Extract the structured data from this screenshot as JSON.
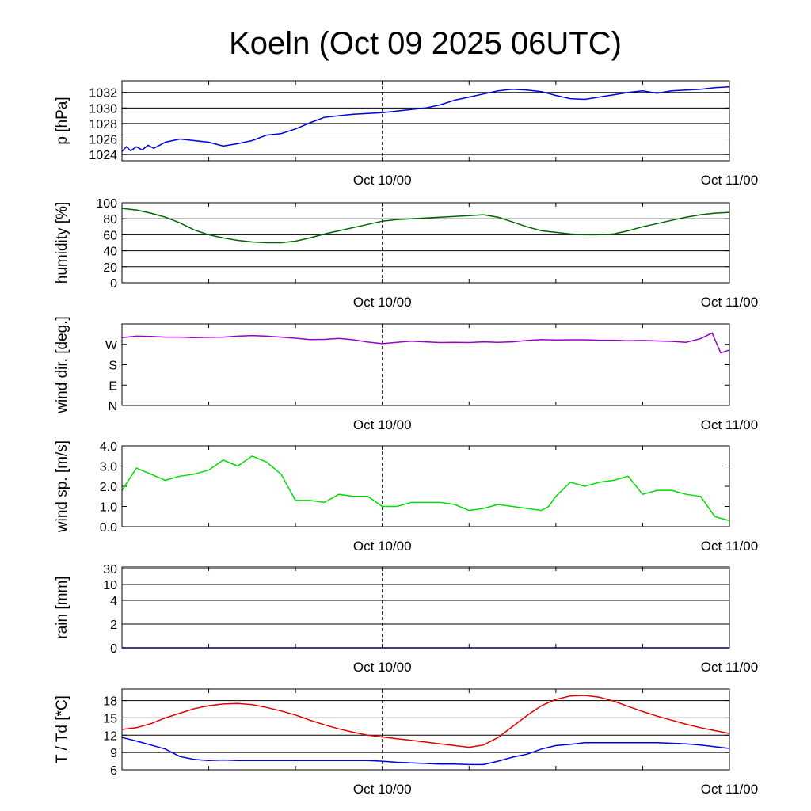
{
  "title": "Koeln (Oct 09 2025 06UTC)",
  "colors": {
    "grid": "#000000",
    "frame": "#000000"
  },
  "chart_data": [
    {
      "type": "line",
      "ylabel": "p [hPa]",
      "yticks": [
        {
          "v": 1024,
          "label": "1024"
        },
        {
          "v": 1026,
          "label": "1026"
        },
        {
          "v": 1028,
          "label": "1028"
        },
        {
          "v": 1030,
          "label": "1030"
        },
        {
          "v": 1032,
          "label": "1032"
        }
      ],
      "ylim": [
        1023.2,
        1033.5
      ],
      "grid": true,
      "xticks": [
        {
          "t": 24,
          "label": "Oct 10/00"
        },
        {
          "t": 48,
          "label": "Oct 11/00"
        }
      ],
      "series": [
        {
          "color": "#0000dd",
          "x": [
            6,
            6.3,
            6.6,
            7,
            7.4,
            7.8,
            8.2,
            9,
            10,
            11,
            12,
            13,
            14,
            15,
            16,
            17,
            18,
            19,
            20,
            21,
            22,
            23,
            24,
            25,
            26,
            27,
            28,
            29,
            30,
            31,
            32,
            33,
            34,
            35,
            36,
            37,
            38,
            39,
            40,
            41,
            42,
            43,
            44,
            45,
            46,
            47,
            48
          ],
          "y": [
            1024.4,
            1025.0,
            1024.5,
            1025.0,
            1024.6,
            1025.2,
            1024.8,
            1025.6,
            1026.0,
            1025.8,
            1025.6,
            1025.1,
            1025.4,
            1025.8,
            1026.5,
            1026.7,
            1027.3,
            1028.1,
            1028.8,
            1029.0,
            1029.2,
            1029.3,
            1029.4,
            1029.6,
            1029.8,
            1030.0,
            1030.4,
            1031.0,
            1031.4,
            1031.8,
            1032.2,
            1032.4,
            1032.3,
            1032.1,
            1031.6,
            1031.2,
            1031.1,
            1031.4,
            1031.7,
            1032.0,
            1032.2,
            1031.9,
            1032.2,
            1032.3,
            1032.4,
            1032.6,
            1032.7
          ]
        }
      ]
    },
    {
      "type": "line",
      "ylabel": "humidity [%]",
      "yticks": [
        {
          "v": 0,
          "label": "0"
        },
        {
          "v": 20,
          "label": "20"
        },
        {
          "v": 40,
          "label": "40"
        },
        {
          "v": 60,
          "label": "60"
        },
        {
          "v": 80,
          "label": "80"
        },
        {
          "v": 100,
          "label": "100"
        }
      ],
      "ylim": [
        0,
        100
      ],
      "grid": true,
      "xticks": [
        {
          "t": 24,
          "label": "Oct 10/00"
        },
        {
          "t": 48,
          "label": "Oct 11/00"
        }
      ],
      "series": [
        {
          "color": "#006400",
          "x": [
            6,
            7,
            8,
            9,
            10,
            11,
            12,
            13,
            14,
            15,
            16,
            17,
            18,
            19,
            20,
            21,
            22,
            23,
            24,
            25,
            26,
            27,
            28,
            29,
            30,
            31,
            32,
            33,
            34,
            35,
            36,
            37,
            38,
            39,
            40,
            41,
            42,
            43,
            44,
            45,
            46,
            47,
            48
          ],
          "y": [
            93,
            91,
            87,
            82,
            75,
            66,
            60,
            56,
            53,
            51,
            50,
            50,
            52,
            56,
            61,
            65,
            69,
            73,
            77,
            79,
            80,
            81,
            82,
            83,
            84,
            85,
            82,
            76,
            70,
            65,
            63,
            61,
            60,
            60,
            61,
            65,
            70,
            74,
            78,
            82,
            85,
            87,
            88
          ]
        }
      ]
    },
    {
      "type": "line",
      "ylabel": "wind dir. [deg.]",
      "yticks": [
        {
          "v": 0,
          "label": "N"
        },
        {
          "v": 90,
          "label": "E"
        },
        {
          "v": 180,
          "label": "S"
        },
        {
          "v": 270,
          "label": "W"
        }
      ],
      "ylim": [
        0,
        360
      ],
      "grid": false,
      "xticks": [
        {
          "t": 24,
          "label": "Oct 10/00"
        },
        {
          "t": 48,
          "label": "Oct 11/00"
        }
      ],
      "series": [
        {
          "color": "#9900cc",
          "x": [
            6,
            7,
            8,
            9,
            10,
            11,
            12,
            13,
            14,
            15,
            16,
            17,
            18,
            19,
            20,
            21,
            22,
            23,
            24,
            25,
            26,
            27,
            28,
            29,
            30,
            31,
            32,
            33,
            34,
            35,
            36,
            37,
            38,
            39,
            40,
            41,
            42,
            43,
            44,
            45,
            46,
            46.8,
            47.4,
            48
          ],
          "y": [
            300,
            306,
            305,
            302,
            302,
            300,
            301,
            302,
            306,
            309,
            306,
            302,
            297,
            291,
            292,
            296,
            290,
            280,
            273,
            279,
            284,
            281,
            278,
            279,
            278,
            281,
            279,
            281,
            287,
            291,
            289,
            290,
            290,
            288,
            288,
            286,
            287,
            285,
            283,
            279,
            295,
            320,
            232,
            245
          ]
        }
      ]
    },
    {
      "type": "line",
      "ylabel": "wind sp. [m/s]",
      "yticks": [
        {
          "v": 0,
          "label": "0.0"
        },
        {
          "v": 1,
          "label": "1.0"
        },
        {
          "v": 2,
          "label": "2.0"
        },
        {
          "v": 3,
          "label": "3.0"
        },
        {
          "v": 4,
          "label": "4.0"
        }
      ],
      "ylim": [
        0,
        4
      ],
      "grid": false,
      "xticks": [
        {
          "t": 24,
          "label": "Oct 10/00"
        },
        {
          "t": 48,
          "label": "Oct 11/00"
        }
      ],
      "series": [
        {
          "color": "#00dd00",
          "x": [
            6,
            7,
            8,
            9,
            10,
            11,
            12,
            13,
            14,
            15,
            16,
            17,
            18,
            19,
            20,
            21,
            22,
            23,
            24,
            25,
            26,
            27,
            28,
            29,
            30,
            31,
            32,
            33,
            34,
            35,
            35.5,
            36,
            37,
            38,
            39,
            40,
            41,
            42,
            43,
            44,
            45,
            46,
            47,
            48
          ],
          "y": [
            1.8,
            2.9,
            2.6,
            2.3,
            2.5,
            2.6,
            2.8,
            3.3,
            3.0,
            3.5,
            3.2,
            2.6,
            1.3,
            1.3,
            1.2,
            1.6,
            1.5,
            1.5,
            1.0,
            1.0,
            1.2,
            1.2,
            1.2,
            1.1,
            0.8,
            0.9,
            1.1,
            1.0,
            0.9,
            0.8,
            1.0,
            1.5,
            2.2,
            2.0,
            2.2,
            2.3,
            2.5,
            1.6,
            1.8,
            1.8,
            1.6,
            1.5,
            0.5,
            0.3
          ]
        }
      ]
    },
    {
      "type": "line",
      "ylabel": "rain [mm]",
      "yticks": [
        {
          "v": 0,
          "label": "0"
        },
        {
          "v": 2,
          "label": "2"
        },
        {
          "v": 4,
          "label": "4"
        },
        {
          "v": 10,
          "label": "10"
        },
        {
          "v": 30,
          "label": "30"
        }
      ],
      "ylim": [
        0,
        30
      ],
      "yscale": "sqrt-like",
      "grid": true,
      "xticks": [
        {
          "t": 24,
          "label": "Oct 10/00"
        },
        {
          "t": 48,
          "label": "Oct 11/00"
        }
      ],
      "series": [
        {
          "color": "#0000ff",
          "x": [
            6,
            48
          ],
          "y": [
            0,
            0
          ]
        }
      ]
    },
    {
      "type": "line",
      "ylabel": "T / Td [*C]",
      "yticks": [
        {
          "v": 6,
          "label": "6"
        },
        {
          "v": 9,
          "label": "9"
        },
        {
          "v": 12,
          "label": "12"
        },
        {
          "v": 15,
          "label": "15"
        },
        {
          "v": 18,
          "label": "18"
        }
      ],
      "ylim": [
        6,
        20
      ],
      "grid": true,
      "xticks": [
        {
          "t": 24,
          "label": "Oct 10/00"
        },
        {
          "t": 48,
          "label": "Oct 11/00"
        }
      ],
      "series": [
        {
          "name": "T",
          "color": "#dd0000",
          "x": [
            6,
            7,
            8,
            9,
            10,
            11,
            12,
            13,
            14,
            15,
            16,
            17,
            18,
            19,
            20,
            21,
            22,
            23,
            24,
            25,
            26,
            27,
            28,
            29,
            30,
            31,
            32,
            33,
            34,
            35,
            36,
            37,
            38,
            39,
            40,
            41,
            42,
            43,
            44,
            45,
            46,
            47,
            48
          ],
          "y": [
            13.0,
            13.3,
            14.0,
            15.0,
            15.8,
            16.6,
            17.1,
            17.4,
            17.5,
            17.3,
            16.8,
            16.2,
            15.5,
            14.6,
            13.8,
            13.1,
            12.5,
            12.0,
            11.7,
            11.4,
            11.1,
            10.8,
            10.5,
            10.2,
            9.9,
            10.3,
            11.6,
            13.5,
            15.4,
            17.1,
            18.2,
            18.8,
            18.9,
            18.6,
            17.9,
            17.0,
            16.1,
            15.3,
            14.6,
            13.9,
            13.3,
            12.8,
            12.3
          ]
        },
        {
          "name": "Td",
          "color": "#0000dd",
          "x": [
            6,
            7,
            8,
            9,
            10,
            11,
            12,
            13,
            14,
            15,
            16,
            17,
            18,
            19,
            20,
            21,
            22,
            23,
            24,
            25,
            26,
            27,
            28,
            29,
            30,
            31,
            32,
            33,
            34,
            35,
            36,
            37,
            38,
            39,
            40,
            41,
            42,
            43,
            44,
            45,
            46,
            47,
            48
          ],
          "y": [
            11.6,
            11.0,
            10.3,
            9.6,
            8.3,
            7.8,
            7.6,
            7.7,
            7.6,
            7.6,
            7.6,
            7.6,
            7.6,
            7.6,
            7.6,
            7.6,
            7.6,
            7.6,
            7.5,
            7.3,
            7.2,
            7.1,
            7.0,
            7.0,
            6.9,
            6.9,
            7.5,
            8.2,
            8.7,
            9.6,
            10.2,
            10.4,
            10.7,
            10.7,
            10.7,
            10.7,
            10.7,
            10.7,
            10.6,
            10.5,
            10.3,
            10.0,
            9.7
          ]
        }
      ]
    }
  ]
}
